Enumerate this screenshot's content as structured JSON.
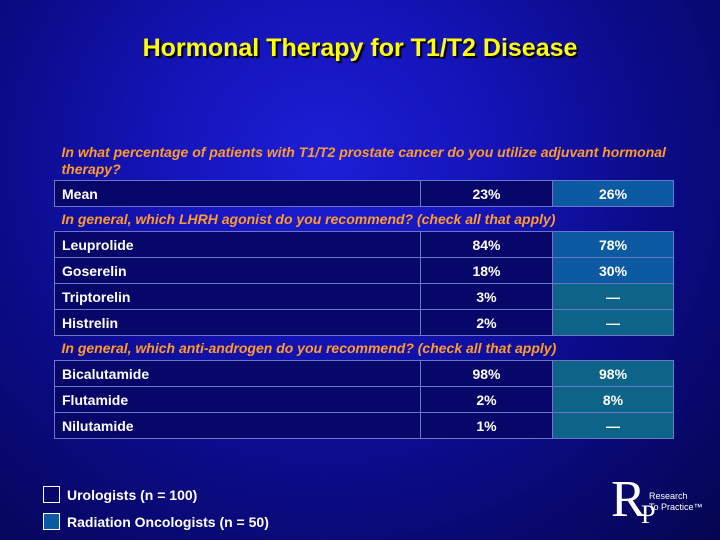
{
  "title": "Hormonal Therapy for T1/T2 Disease",
  "questions": {
    "q1": "In what percentage of patients with T1/T2 prostate cancer do you utilize adjuvant hormonal therapy?",
    "q2": "In general, which LHRH agonist do you recommend? (check all that apply)",
    "q3": "In general, which anti-androgen do you recommend? (check all that apply)"
  },
  "rows": {
    "mean": {
      "label": "Mean",
      "urologists": "23%",
      "radiation_oncologists": "26%"
    },
    "leuprolide": {
      "label": "Leuprolide",
      "urologists": "84%",
      "radiation_oncologists": "78%"
    },
    "goserelin": {
      "label": "Goserelin",
      "urologists": "18%",
      "radiation_oncologists": "30%"
    },
    "triptorelin": {
      "label": "Triptorelin",
      "urologists": "3%",
      "radiation_oncologists": "—"
    },
    "histrelin": {
      "label": "Histrelin",
      "urologists": "2%",
      "radiation_oncologists": "—"
    },
    "bicalutamide": {
      "label": "Bicalutamide",
      "urologists": "98%",
      "radiation_oncologists": "98%"
    },
    "flutamide": {
      "label": "Flutamide",
      "urologists": "2%",
      "radiation_oncologists": "8%"
    },
    "nilutamide": {
      "label": "Nilutamide",
      "urologists": "1%",
      "radiation_oncologists": "—"
    }
  },
  "legend": {
    "urologists": "Urologists  (n = 100)",
    "radiation_oncologists": "Radiation Oncologists  (n = 50)"
  },
  "logo": {
    "letters": "RP",
    "line1": "Research",
    "line2": "To Practice™"
  },
  "colors": {
    "title": "#ffff00",
    "question": "#ff9a2e",
    "urologists_cell": "#07076a",
    "radiation_oncologists_cell": "#0b5aa2"
  }
}
